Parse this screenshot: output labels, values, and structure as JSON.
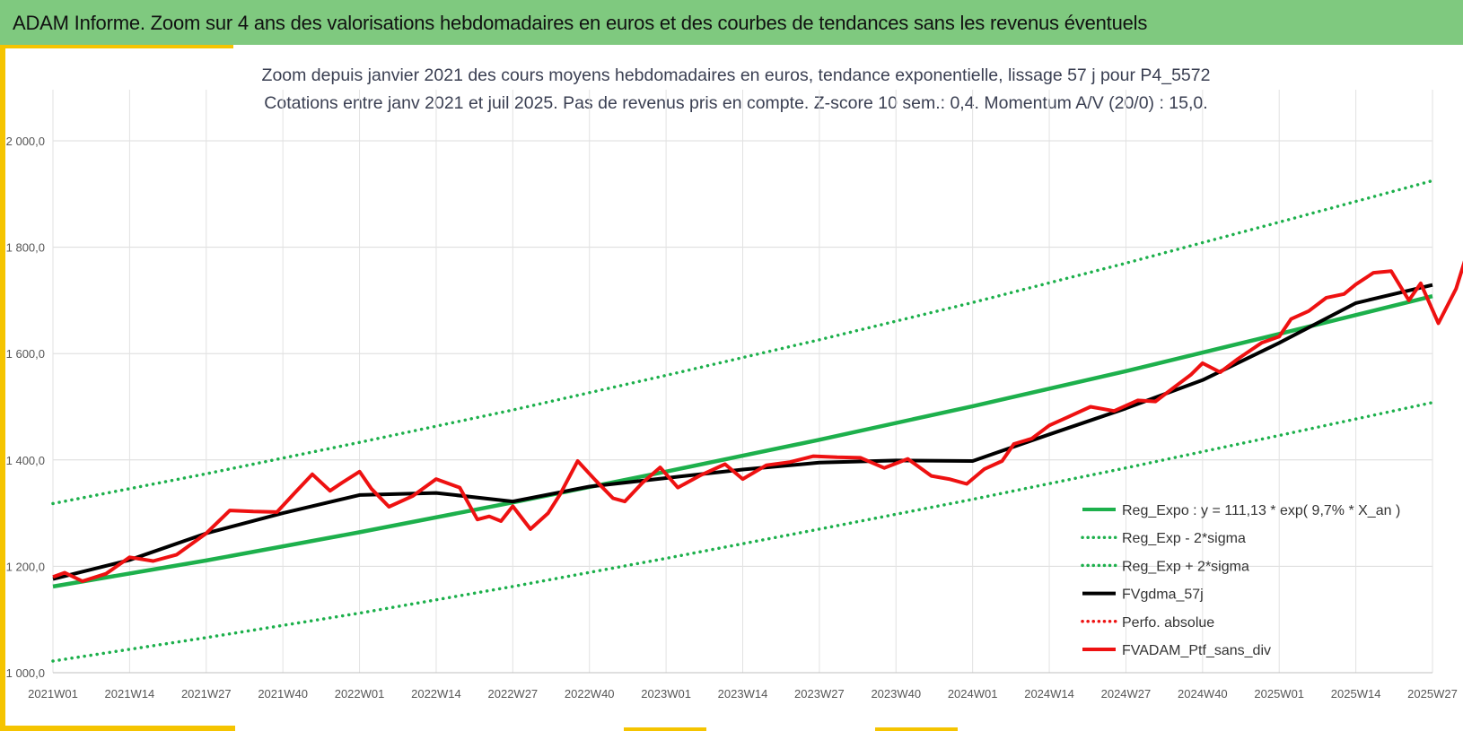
{
  "header": {
    "title": "ADAM Informe. Zoom sur 4 ans des valorisations hebdomadaires en euros et des courbes de tendances sans les revenus éventuels"
  },
  "colors": {
    "header_bg": "#7fc97f",
    "accent": "#f5c400",
    "trend": "#1db04c",
    "smooth": "#000000",
    "portfolio": "#ee1111"
  },
  "chart_data": {
    "type": "line",
    "subtitle_line1": "Zoom depuis janvier 2021 des cours moyens hebdomadaires  en euros, tendance exponentielle, lissage 57 j pour P4_5572",
    "subtitle_line2": "Cotations  entre janv 2021 et juil 2025. Pas de revenus pris en compte. Z-score 10 sem.: 0,4. Momentum  A/V (20/0) : 15,0.",
    "ylim": [
      1000,
      2000
    ],
    "y_ticks": [
      1000,
      1200,
      1400,
      1600,
      1800,
      2000
    ],
    "y_tick_labels": [
      "1 000,0",
      "1 200,0",
      "1 400,0",
      "1 600,0",
      "1 800,0",
      "2 000,0"
    ],
    "x_tick_labels": [
      "2021W01",
      "2021W14",
      "2021W27",
      "2021W40",
      "2022W01",
      "2022W14",
      "2022W27",
      "2022W40",
      "2023W01",
      "2023W14",
      "2023W27",
      "2023W40",
      "2024W01",
      "2024W14",
      "2024W27",
      "2024W40",
      "2025W01",
      "2025W14",
      "2025W27"
    ],
    "x_tick_step_weeks": 13,
    "grid": true,
    "legend_position": "bottom-right",
    "legend": [
      {
        "label": "Reg_Expo : y = 111,13 * exp( 9,7% *  X_an )",
        "style": "solid",
        "color": "#1db04c"
      },
      {
        "label": "Reg_Exp - 2*sigma",
        "style": "dotted",
        "color": "#1db04c"
      },
      {
        "label": "Reg_Exp + 2*sigma",
        "style": "dotted",
        "color": "#1db04c"
      },
      {
        "label": "FVgdma_57j",
        "style": "solid",
        "color": "#000000"
      },
      {
        "label": "Perfo. absolue",
        "style": "dotted",
        "color": "#ee1111"
      },
      {
        "label": "FVADAM_Ptf_sans_div",
        "style": "solid",
        "color": "#ee1111"
      }
    ],
    "series": [
      {
        "name": "Reg_Expo : y = 111,13 * exp( 9,7% *  X_an )",
        "color": "#1db04c",
        "style": "solid",
        "width": 4.5,
        "x": [
          0,
          26,
          52,
          78,
          104,
          130,
          156,
          182,
          208,
          234
        ],
        "y": [
          1162,
          1211,
          1264,
          1320,
          1378,
          1438,
          1501,
          1567,
          1637,
          1708
        ]
      },
      {
        "name": "Reg_Exp - 2*sigma",
        "color": "#1db04c",
        "style": "dotted",
        "width": 3.5,
        "x": [
          0,
          26,
          52,
          78,
          104,
          130,
          156,
          182,
          208,
          234
        ],
        "y": [
          1022,
          1066,
          1112,
          1162,
          1215,
          1270,
          1326,
          1385,
          1446,
          1508
        ]
      },
      {
        "name": "Reg_Exp + 2*sigma",
        "color": "#1db04c",
        "style": "dotted",
        "width": 3.5,
        "x": [
          0,
          26,
          52,
          78,
          104,
          130,
          156,
          182,
          208,
          234
        ],
        "y": [
          1318,
          1374,
          1433,
          1494,
          1559,
          1626,
          1696,
          1770,
          1847,
          1925
        ]
      },
      {
        "name": "FVgdma_57j",
        "color": "#000000",
        "style": "solid",
        "width": 4,
        "x": [
          0,
          13,
          26,
          39,
          52,
          65,
          78,
          91,
          104,
          117,
          130,
          143,
          156,
          169,
          182,
          195,
          208,
          221,
          234
        ],
        "y": [
          1176,
          1212,
          1262,
          1300,
          1334,
          1338,
          1322,
          1350,
          1366,
          1382,
          1395,
          1399,
          1398,
          1448,
          1497,
          1550,
          1620,
          1695,
          1729
        ]
      },
      {
        "name": "FVADAM_Ptf_sans_div",
        "color": "#ee1111",
        "style": "solid",
        "width": 4,
        "x": [
          0,
          2,
          5,
          9,
          13,
          17,
          21,
          26,
          30,
          34,
          38,
          41,
          44,
          47,
          49,
          52,
          54,
          57,
          61,
          65,
          69,
          72,
          74,
          76,
          78,
          81,
          84,
          86,
          89,
          92,
          95,
          97,
          100,
          103,
          106,
          110,
          114,
          117,
          121,
          125,
          129,
          133,
          137,
          141,
          145,
          149,
          152,
          155,
          158,
          161,
          163,
          166,
          169,
          172,
          176,
          180,
          184,
          187,
          190,
          193,
          195,
          198,
          201,
          205,
          208,
          210,
          213,
          216,
          219,
          221,
          224,
          227,
          230,
          232,
          235,
          238,
          240,
          243
        ],
        "y": [
          1180,
          1188,
          1172,
          1186,
          1217,
          1210,
          1222,
          1262,
          1305,
          1303,
          1302,
          1338,
          1373,
          1342,
          1357,
          1378,
          1346,
          1312,
          1332,
          1364,
          1348,
          1288,
          1294,
          1285,
          1313,
          1270,
          1300,
          1335,
          1398,
          1362,
          1328,
          1322,
          1357,
          1386,
          1348,
          1372,
          1392,
          1364,
          1390,
          1396,
          1407,
          1405,
          1404,
          1385,
          1402,
          1370,
          1364,
          1355,
          1383,
          1398,
          1430,
          1440,
          1465,
          1480,
          1500,
          1492,
          1512,
          1510,
          1535,
          1560,
          1582,
          1565,
          1590,
          1620,
          1632,
          1665,
          1680,
          1705,
          1712,
          1730,
          1752,
          1755,
          1700,
          1732,
          1657,
          1722,
          1793,
          1799
        ]
      }
    ]
  }
}
